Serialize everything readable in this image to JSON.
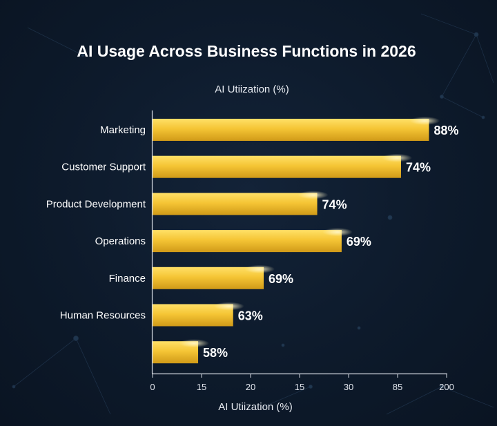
{
  "chart_data": {
    "type": "bar",
    "orientation": "horizontal",
    "title": "AI Usage Across Business Functions in 2026",
    "subtitle": "AI Utiization (%)",
    "xlabel": "AI Utiization (%)",
    "categories": [
      "Marketing",
      "Customer Support",
      "Product Development",
      "Operations",
      "Finance",
      "Human Resources",
      ""
    ],
    "values": [
      88,
      74,
      74,
      69,
      69,
      63,
      58
    ],
    "value_labels": [
      "88%",
      "74%",
      "74%",
      "69%",
      "69%",
      "63%",
      "58%"
    ],
    "bar_length_fraction": [
      0.94,
      0.845,
      0.56,
      0.643,
      0.378,
      0.274,
      0.155
    ],
    "x_ticks": [
      "0",
      "15",
      "20",
      "15",
      "30",
      "85",
      "200"
    ],
    "grid": false,
    "colors": {
      "bar_top": "#ffd84a",
      "bar_bottom": "#d6a21c",
      "background": "#0d1a2b",
      "text": "#ffffff"
    }
  }
}
